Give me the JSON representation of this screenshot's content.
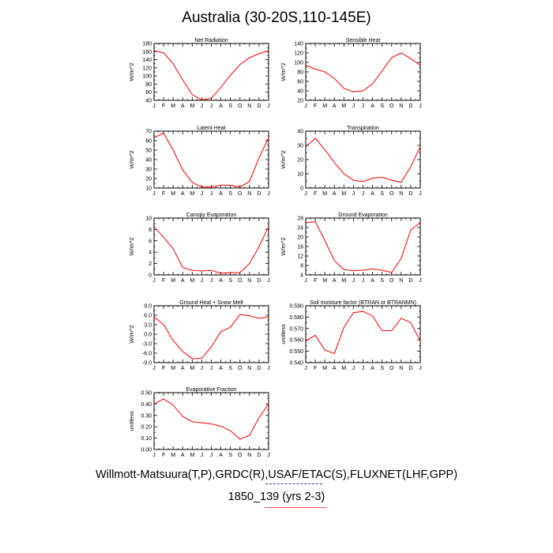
{
  "title": "Australia (30-20S,110-145E)",
  "footer": {
    "source": "Willmott-Matsuura(T,P),GRDC(R),USAF/ETAC(S),FLUXNET(LHF,GPP)",
    "case": "1850_139 (yrs 2-3)"
  },
  "colors": {
    "line": "#ff0000",
    "axis": "#000000"
  },
  "chart_data": [
    {
      "type": "line",
      "title": "Net Radiation",
      "ylabel": "W/m^2",
      "x": [
        "J",
        "F",
        "M",
        "A",
        "M",
        "J",
        "J",
        "A",
        "S",
        "O",
        "N",
        "D",
        "J"
      ],
      "ylim": [
        40,
        180
      ],
      "yticks": [
        40,
        60,
        80,
        100,
        120,
        140,
        160,
        180
      ],
      "yticklabels": [
        "40",
        "60",
        "80",
        "100",
        "120",
        "140",
        "160",
        "180"
      ],
      "series": [
        {
          "values": [
            162,
            157,
            130,
            90,
            54,
            41,
            45,
            72,
            102,
            128,
            145,
            155,
            162
          ]
        }
      ]
    },
    {
      "type": "line",
      "title": "Sensible Heat",
      "ylabel": "W/m^2",
      "x": [
        "J",
        "F",
        "M",
        "A",
        "M",
        "J",
        "J",
        "A",
        "S",
        "O",
        "N",
        "D",
        "J"
      ],
      "ylim": [
        20,
        140
      ],
      "yticks": [
        20,
        40,
        60,
        80,
        100,
        120,
        140
      ],
      "yticklabels": [
        "20",
        "40",
        "60",
        "80",
        "100",
        "120",
        "140"
      ],
      "series": [
        {
          "values": [
            94,
            86,
            80,
            66,
            45,
            38,
            40,
            55,
            82,
            110,
            120,
            108,
            94
          ]
        }
      ]
    },
    {
      "type": "line",
      "title": "Latent Heat",
      "ylabel": "W/m^2",
      "x": [
        "J",
        "F",
        "M",
        "A",
        "M",
        "J",
        "J",
        "A",
        "S",
        "O",
        "N",
        "D",
        "J"
      ],
      "ylim": [
        10,
        70
      ],
      "yticks": [
        10,
        20,
        30,
        40,
        50,
        60,
        70
      ],
      "yticklabels": [
        "10",
        "20",
        "30",
        "40",
        "50",
        "60",
        "70"
      ],
      "series": [
        {
          "values": [
            63,
            68,
            50,
            29,
            16,
            11,
            11,
            13,
            13,
            11,
            17,
            42,
            63
          ]
        }
      ]
    },
    {
      "type": "line",
      "title": "Transpiration",
      "ylabel": "W/m^2",
      "x": [
        "J",
        "F",
        "M",
        "A",
        "M",
        "J",
        "J",
        "A",
        "S",
        "O",
        "N",
        "D",
        "J"
      ],
      "ylim": [
        0,
        40
      ],
      "yticks": [
        0,
        10,
        20,
        30,
        40
      ],
      "yticklabels": [
        "0",
        "10",
        "20",
        "30",
        "40"
      ],
      "series": [
        {
          "values": [
            29,
            35,
            27,
            18,
            10,
            5.5,
            4.5,
            7,
            7.5,
            5.5,
            4,
            15,
            29
          ]
        }
      ]
    },
    {
      "type": "line",
      "title": "Canopy Evaporation",
      "ylabel": "W/m^2",
      "x": [
        "J",
        "F",
        "M",
        "A",
        "M",
        "J",
        "J",
        "A",
        "S",
        "O",
        "N",
        "D",
        "J"
      ],
      "ylim": [
        0,
        10
      ],
      "yticks": [
        0,
        2,
        4,
        6,
        8,
        10
      ],
      "yticklabels": [
        "0",
        "2",
        "4",
        "6",
        "8",
        "10"
      ],
      "series": [
        {
          "values": [
            8.5,
            6.6,
            4.6,
            1.3,
            0.8,
            0.7,
            0.8,
            0.3,
            0.4,
            0.4,
            2.0,
            5.0,
            8.5
          ]
        }
      ]
    },
    {
      "type": "line",
      "title": "Ground Evaporation",
      "ylabel": "W/m^2",
      "x": [
        "J",
        "F",
        "M",
        "A",
        "M",
        "J",
        "J",
        "A",
        "S",
        "O",
        "N",
        "D",
        "J"
      ],
      "ylim": [
        4,
        28
      ],
      "yticks": [
        4,
        8,
        12,
        16,
        20,
        24,
        28
      ],
      "yticklabels": [
        "4",
        "8",
        "12",
        "16",
        "20",
        "24",
        "28"
      ],
      "series": [
        {
          "values": [
            26,
            26.5,
            18.5,
            10,
            6.3,
            5.8,
            6,
            6.5,
            6,
            5,
            11,
            23,
            26
          ]
        }
      ]
    },
    {
      "type": "line",
      "title": "Ground Heat + Snow Melt",
      "ylabel": "W/m^2",
      "x": [
        "J",
        "F",
        "M",
        "A",
        "M",
        "J",
        "J",
        "A",
        "S",
        "O",
        "N",
        "D",
        "J"
      ],
      "ylim": [
        -9,
        9
      ],
      "yticks": [
        -9,
        -6,
        -3,
        0,
        3,
        6,
        9
      ],
      "yticklabels": [
        "-9.0",
        "-6.0",
        "-3.0",
        "0.0",
        "3.0",
        "6.0",
        "9.0"
      ],
      "series": [
        {
          "values": [
            5.5,
            3,
            -2,
            -5.5,
            -7.8,
            -7.6,
            -4,
            0.8,
            2.2,
            6.2,
            5.8,
            5,
            5.5
          ]
        }
      ]
    },
    {
      "type": "line",
      "title": "Soil moisture factor (BTRAN or BTRANMN)",
      "ylabel": "unitless",
      "x": [
        "J",
        "F",
        "M",
        "A",
        "M",
        "J",
        "J",
        "A",
        "S",
        "O",
        "N",
        "D",
        "J"
      ],
      "ylim": [
        0.54,
        0.59
      ],
      "yticks": [
        0.54,
        0.55,
        0.56,
        0.57,
        0.58,
        0.59
      ],
      "yticklabels": [
        "0.540",
        "0.550",
        "0.560",
        "0.570",
        "0.580",
        "0.590"
      ],
      "series": [
        {
          "values": [
            0.559,
            0.564,
            0.551,
            0.548,
            0.571,
            0.584,
            0.585,
            0.581,
            0.568,
            0.568,
            0.579,
            0.575,
            0.559
          ]
        }
      ]
    },
    {
      "type": "line",
      "title": "Evaporative Fraction",
      "ylabel": "unitless",
      "x": [
        "J",
        "F",
        "M",
        "A",
        "M",
        "J",
        "J",
        "A",
        "S",
        "O",
        "N",
        "D",
        "J"
      ],
      "ylim": [
        0,
        0.5
      ],
      "yticks": [
        0,
        0.1,
        0.2,
        0.3,
        0.4,
        0.5
      ],
      "yticklabels": [
        "0.00",
        "0.10",
        "0.20",
        "0.30",
        "0.40",
        "0.50"
      ],
      "series": [
        {
          "values": [
            0.4,
            0.445,
            0.39,
            0.29,
            0.245,
            0.235,
            0.225,
            0.205,
            0.165,
            0.09,
            0.125,
            0.28,
            0.4
          ]
        }
      ]
    }
  ]
}
